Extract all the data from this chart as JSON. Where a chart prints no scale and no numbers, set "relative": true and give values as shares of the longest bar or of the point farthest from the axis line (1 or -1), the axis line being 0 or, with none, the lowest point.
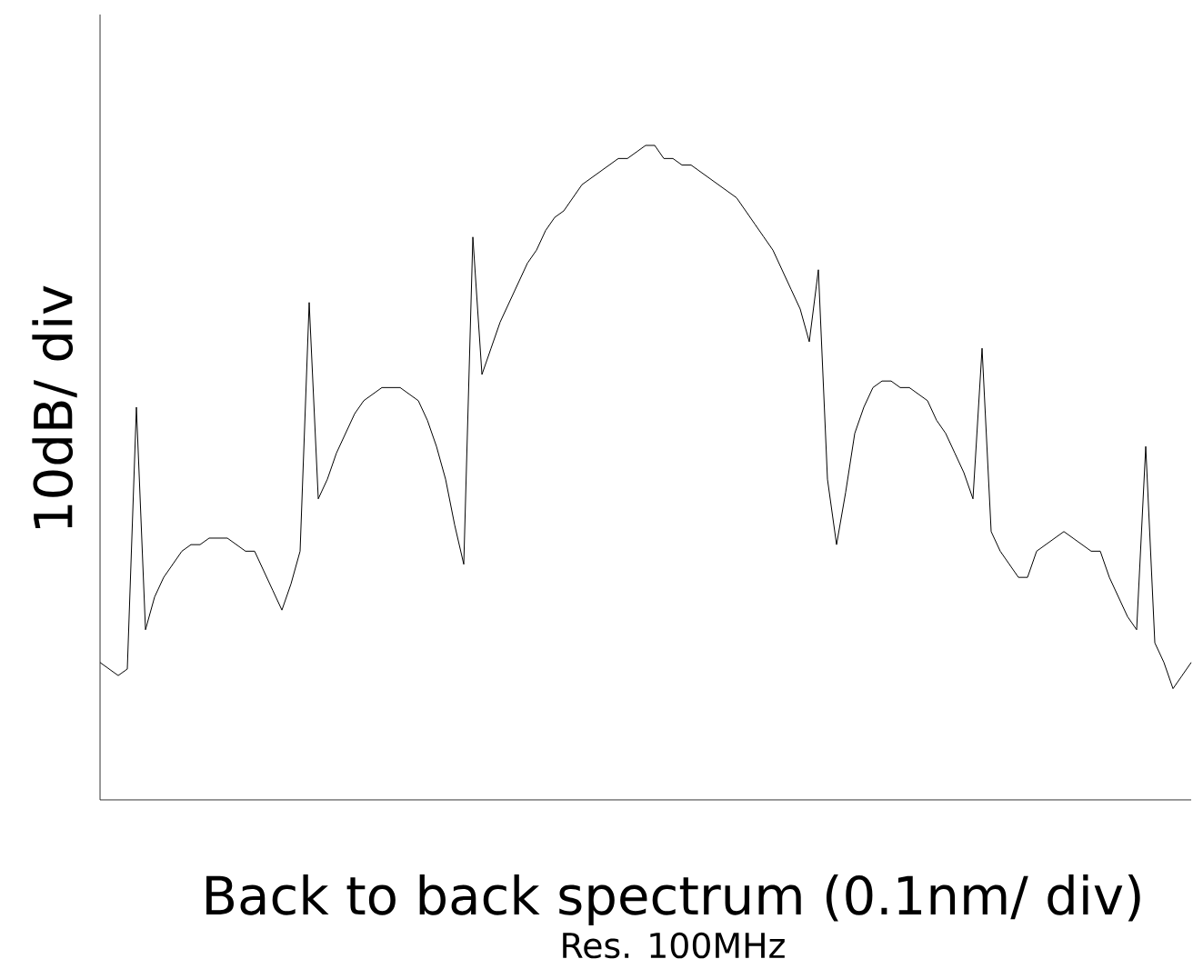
{
  "chart_data": {
    "type": "line",
    "relative": true,
    "color": "#000000",
    "ylabel": "10dB/ div",
    "xlabel": "Back to back spectrum (0.1nm/ div)",
    "annotations": [
      "Res. 100MHz"
    ],
    "categories": [
      null,
      null,
      null,
      null,
      null,
      null,
      null,
      null,
      null,
      null,
      null,
      null,
      null,
      null,
      null,
      null,
      null,
      null,
      null,
      null,
      null,
      null,
      null,
      null,
      null,
      null,
      null,
      null,
      null,
      null,
      null,
      null,
      null,
      null,
      null,
      null,
      null,
      null,
      null,
      null,
      null,
      null,
      null,
      null,
      null,
      null,
      null,
      null,
      null,
      null,
      null,
      null,
      null,
      null,
      null,
      null,
      null,
      null,
      null,
      null,
      null,
      null,
      null,
      null,
      null,
      null,
      null,
      null,
      null,
      null,
      null,
      null,
      null,
      null,
      null,
      null,
      null,
      null,
      null,
      null,
      null,
      null,
      null,
      null,
      null,
      null,
      null,
      null,
      null,
      null,
      null,
      null,
      null,
      null,
      null,
      null,
      null,
      null,
      null,
      null,
      null,
      null,
      null,
      null,
      null,
      null,
      null,
      null,
      null,
      null,
      null,
      null,
      null,
      null,
      null,
      null,
      null,
      null,
      null,
      null,
      null
    ],
    "values": [
      0.21,
      0.2,
      0.19,
      0.2,
      0.6,
      0.26,
      0.31,
      0.34,
      0.36,
      0.38,
      0.39,
      0.39,
      0.4,
      0.4,
      0.4,
      0.39,
      0.38,
      0.38,
      0.35,
      0.32,
      0.29,
      0.33,
      0.38,
      0.76,
      0.46,
      0.49,
      0.53,
      0.56,
      0.59,
      0.61,
      0.62,
      0.63,
      0.63,
      0.63,
      0.62,
      0.61,
      0.58,
      0.54,
      0.49,
      0.42,
      0.36,
      0.86,
      0.65,
      0.69,
      0.73,
      0.76,
      0.79,
      0.82,
      0.84,
      0.87,
      0.89,
      0.9,
      0.92,
      0.94,
      0.95,
      0.96,
      0.97,
      0.98,
      0.98,
      0.99,
      1.0,
      1.0,
      0.98,
      0.98,
      0.97,
      0.97,
      0.96,
      0.95,
      0.94,
      0.93,
      0.92,
      0.9,
      0.88,
      0.86,
      0.84,
      0.81,
      0.78,
      0.75,
      0.7,
      0.81,
      0.49,
      0.39,
      0.47,
      0.56,
      0.6,
      0.63,
      0.64,
      0.64,
      0.63,
      0.63,
      0.62,
      0.61,
      0.58,
      0.56,
      0.53,
      0.5,
      0.46,
      0.69,
      0.41,
      0.38,
      0.36,
      0.34,
      0.34,
      0.38,
      0.39,
      0.4,
      0.41,
      0.4,
      0.39,
      0.38,
      0.38,
      0.34,
      0.31,
      0.28,
      0.26,
      0.54,
      0.24,
      0.21,
      0.17,
      0.19,
      0.21
    ]
  }
}
